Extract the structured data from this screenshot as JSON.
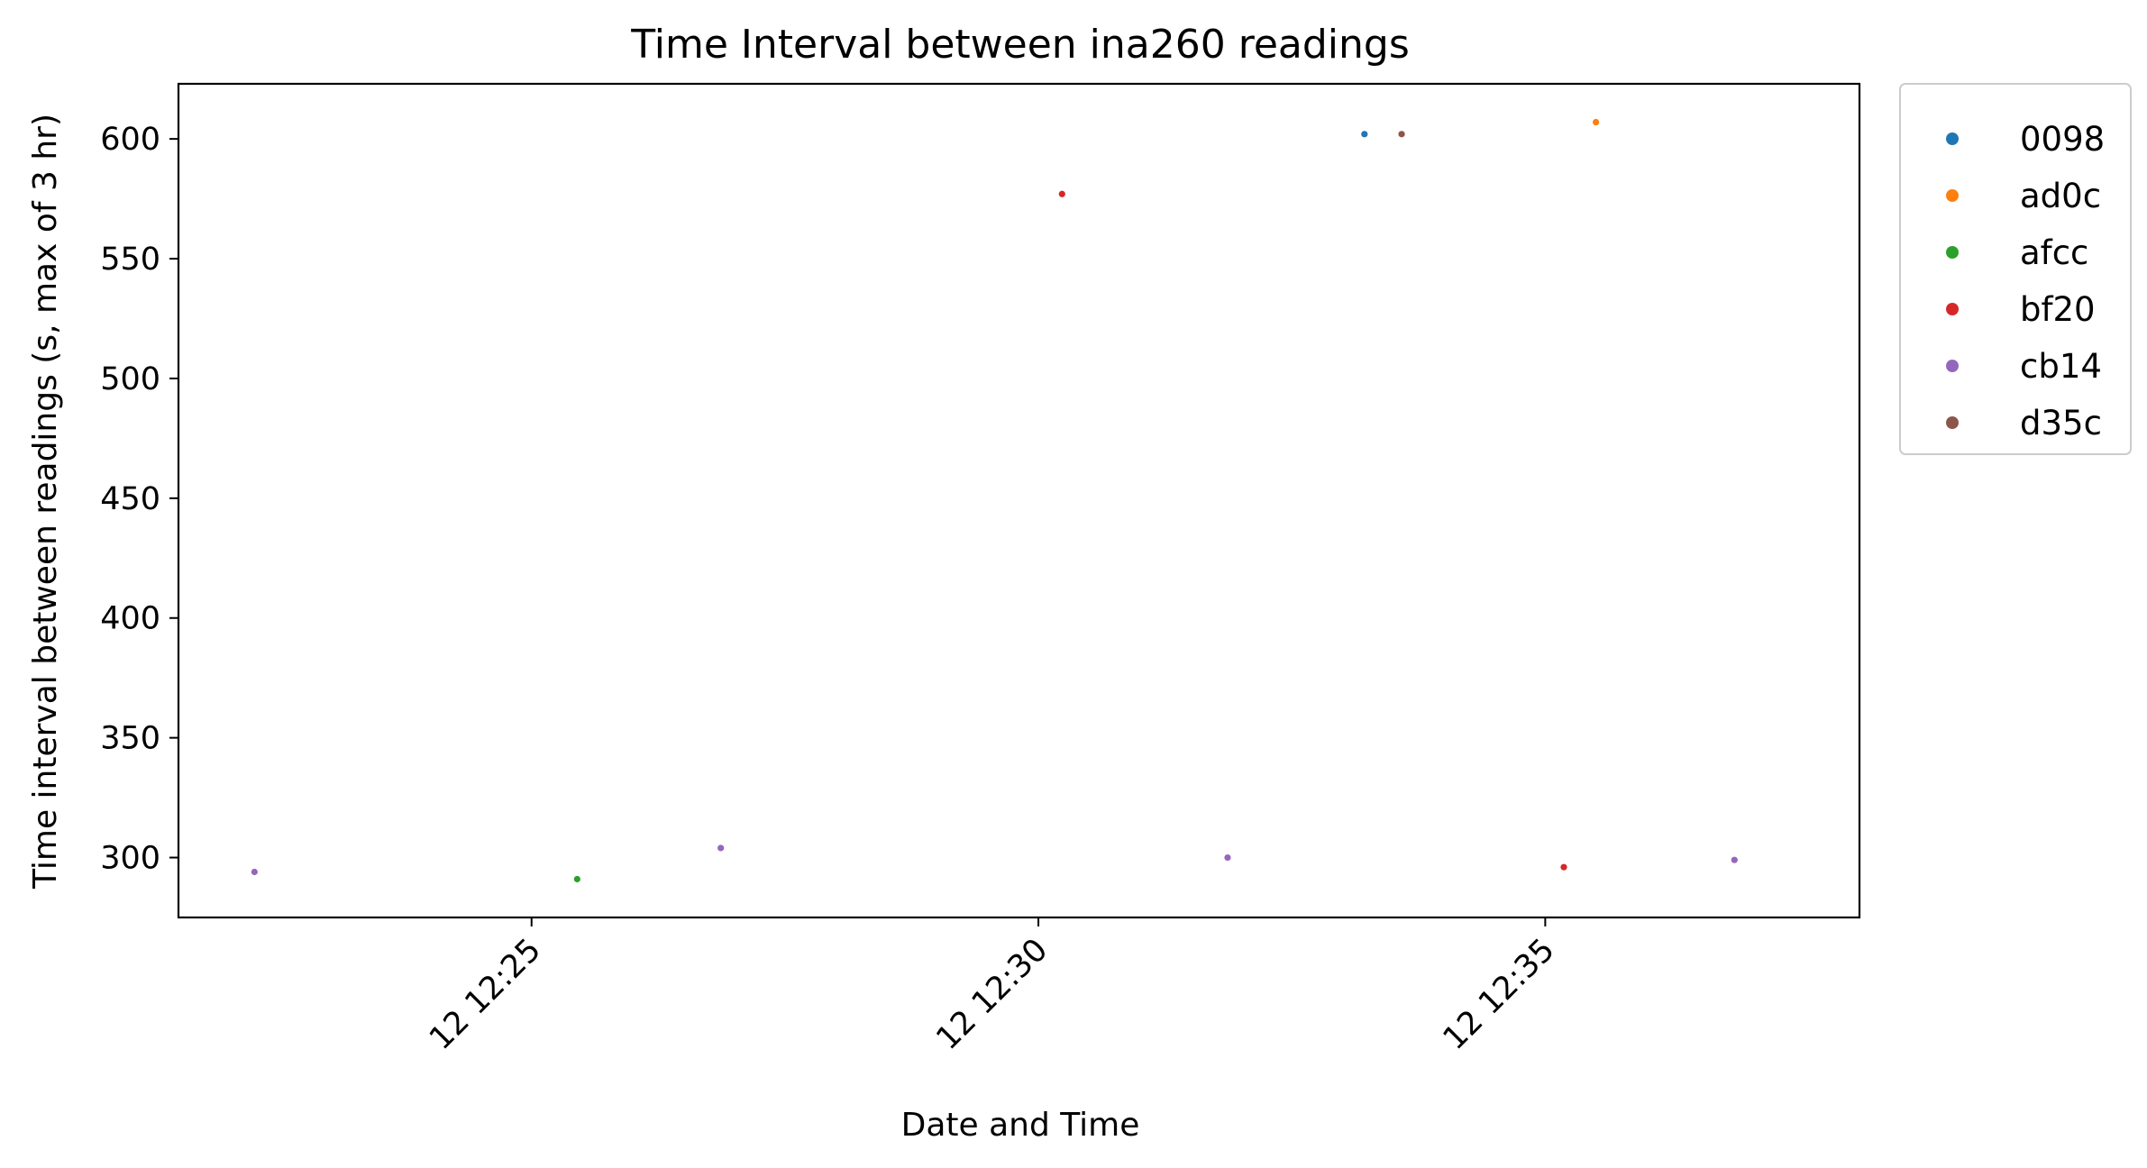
{
  "chart_data": {
    "type": "scatter",
    "title": "Time Interval between ina260 readings",
    "xlabel": "Date and Time",
    "ylabel": "Time interval between readings (s, max of 3 hr)",
    "x_axis_type": "datetime",
    "xlim": [
      "12 12:21:31",
      "12 12:38:06"
    ],
    "ylim": [
      275,
      623
    ],
    "x_ticks": [
      "12 12:25",
      "12 12:30",
      "12 12:35"
    ],
    "y_ticks": [
      300,
      350,
      400,
      450,
      500,
      550,
      600
    ],
    "grid": false,
    "legend_position": "outside-top-right",
    "series": [
      {
        "name": "0098",
        "color": "#1f77b4",
        "points": [
          {
            "x": "12 12:33:13",
            "y": 602
          }
        ]
      },
      {
        "name": "ad0c",
        "color": "#ff7f0e",
        "points": [
          {
            "x": "12 12:35:30",
            "y": 607
          }
        ]
      },
      {
        "name": "afcc",
        "color": "#2ca02c",
        "points": [
          {
            "x": "12 12:25:27",
            "y": 291
          }
        ]
      },
      {
        "name": "bf20",
        "color": "#d62728",
        "points": [
          {
            "x": "12 12:30:14",
            "y": 577
          },
          {
            "x": "12 12:35:11",
            "y": 296
          }
        ]
      },
      {
        "name": "cb14",
        "color": "#9467bd",
        "points": [
          {
            "x": "12 12:22:16",
            "y": 294
          },
          {
            "x": "12 12:26:52",
            "y": 304
          },
          {
            "x": "12 12:31:52",
            "y": 300
          },
          {
            "x": "12 12:36:52",
            "y": 299
          }
        ]
      },
      {
        "name": "d35c",
        "color": "#8c564b",
        "points": [
          {
            "x": "12 12:33:35",
            "y": 602
          }
        ]
      }
    ]
  }
}
